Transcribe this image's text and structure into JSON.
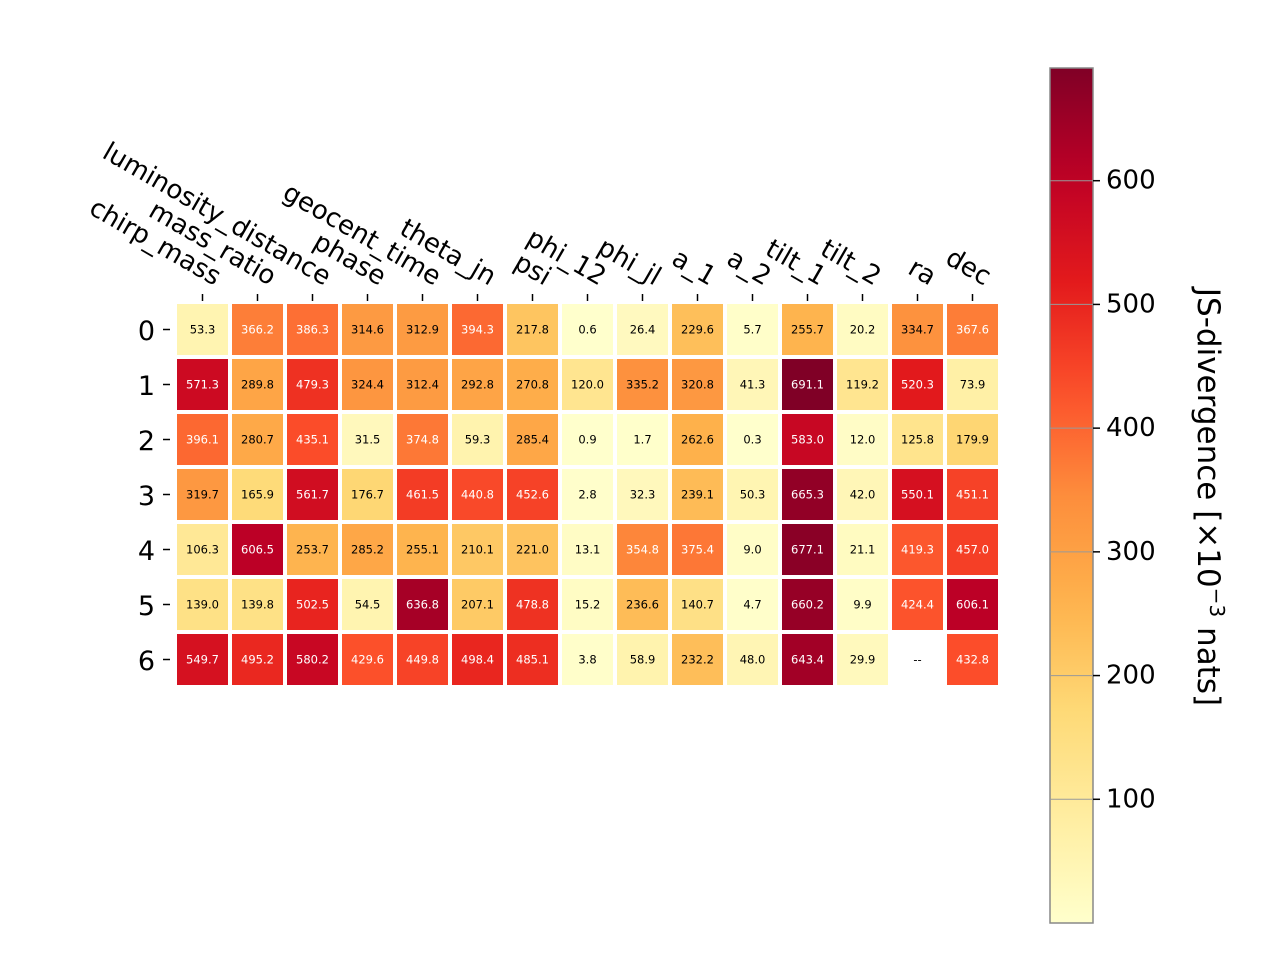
{
  "chart_data": {
    "type": "heatmap",
    "columns": [
      "chirp_mass",
      "mass_ratio",
      "luminosity_distance",
      "phase",
      "geocent_time",
      "theta_jn",
      "psi",
      "phi_12",
      "phi_jl",
      "a_1",
      "a_2",
      "tilt_1",
      "tilt_2",
      "ra",
      "dec"
    ],
    "rows": [
      "0",
      "1",
      "2",
      "3",
      "4",
      "5",
      "6"
    ],
    "values": [
      [
        53.3,
        366.2,
        386.3,
        314.6,
        312.9,
        394.3,
        217.8,
        0.6,
        26.4,
        229.6,
        5.7,
        255.7,
        20.2,
        334.7,
        367.6
      ],
      [
        571.3,
        289.8,
        479.3,
        324.4,
        312.4,
        292.8,
        270.8,
        120.0,
        335.2,
        320.8,
        41.3,
        691.1,
        119.2,
        520.3,
        73.9
      ],
      [
        396.1,
        280.7,
        435.1,
        31.5,
        374.8,
        59.3,
        285.4,
        0.9,
        1.7,
        262.6,
        0.3,
        583.0,
        12.0,
        125.8,
        179.9
      ],
      [
        319.7,
        165.9,
        561.7,
        176.7,
        461.5,
        440.8,
        452.6,
        2.8,
        32.3,
        239.1,
        50.3,
        665.3,
        42.0,
        550.1,
        451.1
      ],
      [
        106.3,
        606.5,
        253.7,
        285.2,
        255.1,
        210.1,
        221.0,
        13.1,
        354.8,
        375.4,
        9.0,
        677.1,
        21.1,
        419.3,
        457.0
      ],
      [
        139.0,
        139.8,
        502.5,
        54.5,
        636.8,
        207.1,
        478.8,
        15.2,
        236.6,
        140.7,
        4.7,
        660.2,
        9.9,
        424.4,
        606.1
      ],
      [
        549.7,
        495.2,
        580.2,
        429.6,
        449.8,
        498.4,
        485.1,
        3.8,
        58.9,
        232.2,
        48.0,
        643.4,
        29.9,
        null,
        432.8
      ]
    ],
    "missing_label": "--",
    "colorbar": {
      "label": "JS-divergence [×10",
      "label_exponent": "−3",
      "label_suffix": " nats]",
      "ticks": [
        100,
        200,
        300,
        400,
        500,
        600
      ],
      "range": [
        0,
        691.1
      ],
      "colormap": "YlOrRd"
    }
  }
}
